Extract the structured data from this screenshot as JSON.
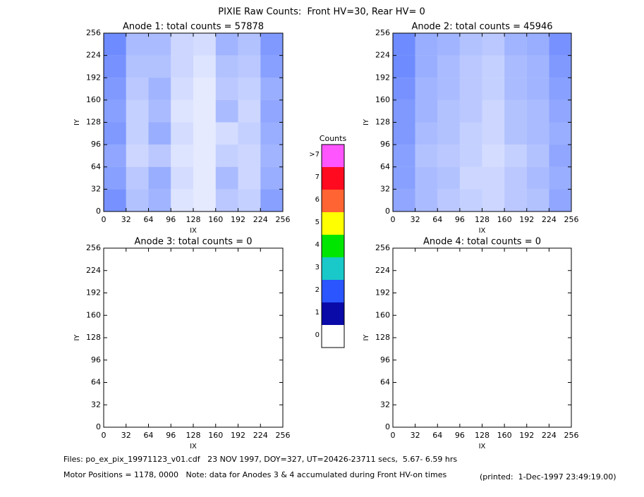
{
  "title": "PIXIE Raw Counts:  Front HV=30, Rear HV= 0",
  "footer": [
    "Files: po_ex_pix_19971123_v01.cdf   23 NOV 1997, DOY=327, UT=20426-23711 secs,  5.67- 6.59 hrs",
    "Motor Positions = 1178, 0000   Note: data for Anodes 3 & 4 accumulated during Front HV-on times",
    "(printed:  1-Dec-1997 23:49:19.00)"
  ],
  "chart_data": [
    {
      "type": "heatmap",
      "title": "Anode 1: total counts = 57878",
      "xlabel": "IX",
      "ylabel": "IY",
      "xlim": [
        0,
        256
      ],
      "ylim": [
        0,
        256
      ],
      "xticks": [
        0,
        32,
        64,
        96,
        128,
        160,
        192,
        224,
        256
      ],
      "yticks": [
        0,
        32,
        64,
        96,
        128,
        160,
        192,
        224,
        256
      ],
      "values": [
        [
          1.6,
          0.9,
          1.1,
          0.4,
          0.3,
          0.8,
          0.7,
          1.4
        ],
        [
          1.4,
          0.8,
          1.2,
          0.5,
          0.3,
          1.0,
          0.6,
          1.2
        ],
        [
          1.3,
          0.6,
          0.8,
          0.4,
          0.3,
          0.7,
          0.6,
          1.1
        ],
        [
          1.5,
          0.7,
          1.2,
          0.5,
          0.3,
          0.5,
          0.7,
          1.2
        ],
        [
          1.4,
          0.7,
          1.0,
          0.4,
          0.3,
          1.0,
          0.6,
          1.3
        ],
        [
          1.5,
          0.8,
          1.1,
          0.5,
          0.3,
          0.8,
          0.7,
          1.2
        ],
        [
          1.6,
          0.9,
          0.9,
          0.6,
          0.4,
          0.9,
          0.8,
          1.4
        ],
        [
          1.7,
          1.0,
          1.0,
          0.6,
          0.5,
          1.1,
          0.9,
          1.5
        ]
      ]
    },
    {
      "type": "heatmap",
      "title": "Anode 2: total counts = 45946",
      "xlabel": "IX",
      "ylabel": "IY",
      "xlim": [
        0,
        256
      ],
      "ylim": [
        0,
        256
      ],
      "xticks": [
        0,
        32,
        64,
        96,
        128,
        160,
        192,
        224,
        256
      ],
      "yticks": [
        0,
        32,
        64,
        96,
        128,
        160,
        192,
        224,
        256
      ],
      "values": [
        [
          1.3,
          1.0,
          0.8,
          0.7,
          0.6,
          0.8,
          0.9,
          1.3
        ],
        [
          1.4,
          1.0,
          0.9,
          0.6,
          0.6,
          0.8,
          1.0,
          1.2
        ],
        [
          1.4,
          0.9,
          0.8,
          0.7,
          0.5,
          0.7,
          0.9,
          1.3
        ],
        [
          1.5,
          1.0,
          0.9,
          0.7,
          0.6,
          0.9,
          1.0,
          1.2
        ],
        [
          1.5,
          1.1,
          0.9,
          0.8,
          0.6,
          0.9,
          1.0,
          1.3
        ],
        [
          1.6,
          1.1,
          1.0,
          0.8,
          0.7,
          1.0,
          1.1,
          1.4
        ],
        [
          1.7,
          1.2,
          1.0,
          0.8,
          0.7,
          1.0,
          1.1,
          1.5
        ],
        [
          1.7,
          1.2,
          1.1,
          0.9,
          0.8,
          1.1,
          1.2,
          1.6
        ]
      ]
    },
    {
      "type": "heatmap",
      "title": "Anode 3: total counts = 0",
      "xlabel": "IX",
      "ylabel": "IY",
      "xlim": [
        0,
        256
      ],
      "ylim": [
        0,
        256
      ],
      "xticks": [
        0,
        32,
        64,
        96,
        128,
        160,
        192,
        224,
        256
      ],
      "yticks": [
        0,
        32,
        64,
        96,
        128,
        160,
        192,
        224,
        256
      ]
    },
    {
      "type": "heatmap",
      "title": "Anode 4: total counts = 0",
      "xlabel": "IX",
      "ylabel": "IY",
      "xlim": [
        0,
        256
      ],
      "ylim": [
        0,
        256
      ],
      "xticks": [
        0,
        32,
        64,
        96,
        128,
        160,
        192,
        224,
        256
      ],
      "yticks": [
        0,
        32,
        64,
        96,
        128,
        160,
        192,
        224,
        256
      ]
    },
    {
      "type": "colorbar",
      "title": "Counts",
      "levels": [
        0,
        1,
        2,
        3,
        4,
        5,
        6,
        7,
        {
          "value": 8,
          "label": ">7"
        }
      ],
      "colors": [
        "#ffffff",
        "#0a0aa8",
        "#2a55ff",
        "#19c8c8",
        "#00e600",
        "#ffff00",
        "#ff6432",
        "#ff0a1e",
        "#ff55ff"
      ]
    }
  ]
}
